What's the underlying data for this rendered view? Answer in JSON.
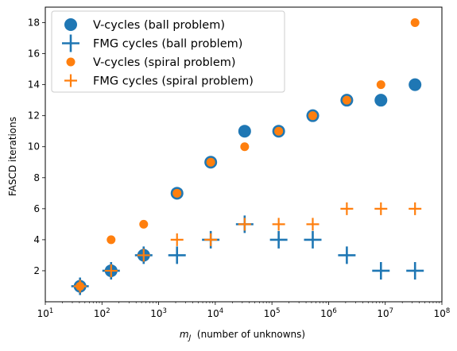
{
  "chart_data": {
    "type": "scatter",
    "x_scale": "log",
    "xlim": [
      10,
      100000000
    ],
    "ylim": [
      0,
      19
    ],
    "grid": false,
    "legend_position": "upper-left",
    "xlabel": "m_J  (number of unknowns)",
    "xlabel_main": "m",
    "xlabel_sub": "J",
    "xlabel_rest": "(number of unknowns)",
    "ylabel": "FASCD iterations",
    "xticks": [
      {
        "value": 10,
        "base": "10",
        "exp": "1"
      },
      {
        "value": 100,
        "base": "10",
        "exp": "2"
      },
      {
        "value": 1000,
        "base": "10",
        "exp": "3"
      },
      {
        "value": 10000,
        "base": "10",
        "exp": "4"
      },
      {
        "value": 100000,
        "base": "10",
        "exp": "5"
      },
      {
        "value": 1000000,
        "base": "10",
        "exp": "6"
      },
      {
        "value": 10000000,
        "base": "10",
        "exp": "7"
      },
      {
        "value": 100000000,
        "base": "10",
        "exp": "8"
      }
    ],
    "yticks": [
      2,
      4,
      6,
      8,
      10,
      12,
      14,
      16,
      18
    ],
    "series": [
      {
        "name": "V-cycles (ball problem)",
        "marker": "circle-large",
        "color": "#1f77b4",
        "x": [
          41,
          145,
          545,
          2113,
          8321,
          33025,
          131585,
          525313,
          2099201,
          8392705,
          33562625
        ],
        "y": [
          1,
          2,
          3,
          7,
          9,
          11,
          11,
          12,
          13,
          13,
          14
        ]
      },
      {
        "name": "FMG cycles (ball problem)",
        "marker": "plus-large",
        "color": "#1f77b4",
        "x": [
          41,
          145,
          545,
          2113,
          8321,
          33025,
          131585,
          525313,
          2099201,
          8392705,
          33562625
        ],
        "y": [
          1,
          2,
          3,
          3,
          4,
          5,
          4,
          4,
          3,
          2,
          2
        ]
      },
      {
        "name": "V-cycles (spiral problem)",
        "marker": "circle-small",
        "color": "#ff7f0e",
        "x": [
          41,
          145,
          545,
          2113,
          8321,
          33025,
          131585,
          525313,
          2099201,
          8392705,
          33562625
        ],
        "y": [
          1,
          4,
          5,
          7,
          9,
          10,
          11,
          12,
          13,
          14,
          18
        ]
      },
      {
        "name": "FMG cycles (spiral problem)",
        "marker": "plus-small",
        "color": "#ff7f0e",
        "x": [
          41,
          145,
          545,
          2113,
          8321,
          33025,
          131585,
          525313,
          2099201,
          8392705,
          33562625
        ],
        "y": [
          1,
          2,
          3,
          4,
          4,
          5,
          5,
          5,
          6,
          6,
          6
        ]
      }
    ]
  }
}
